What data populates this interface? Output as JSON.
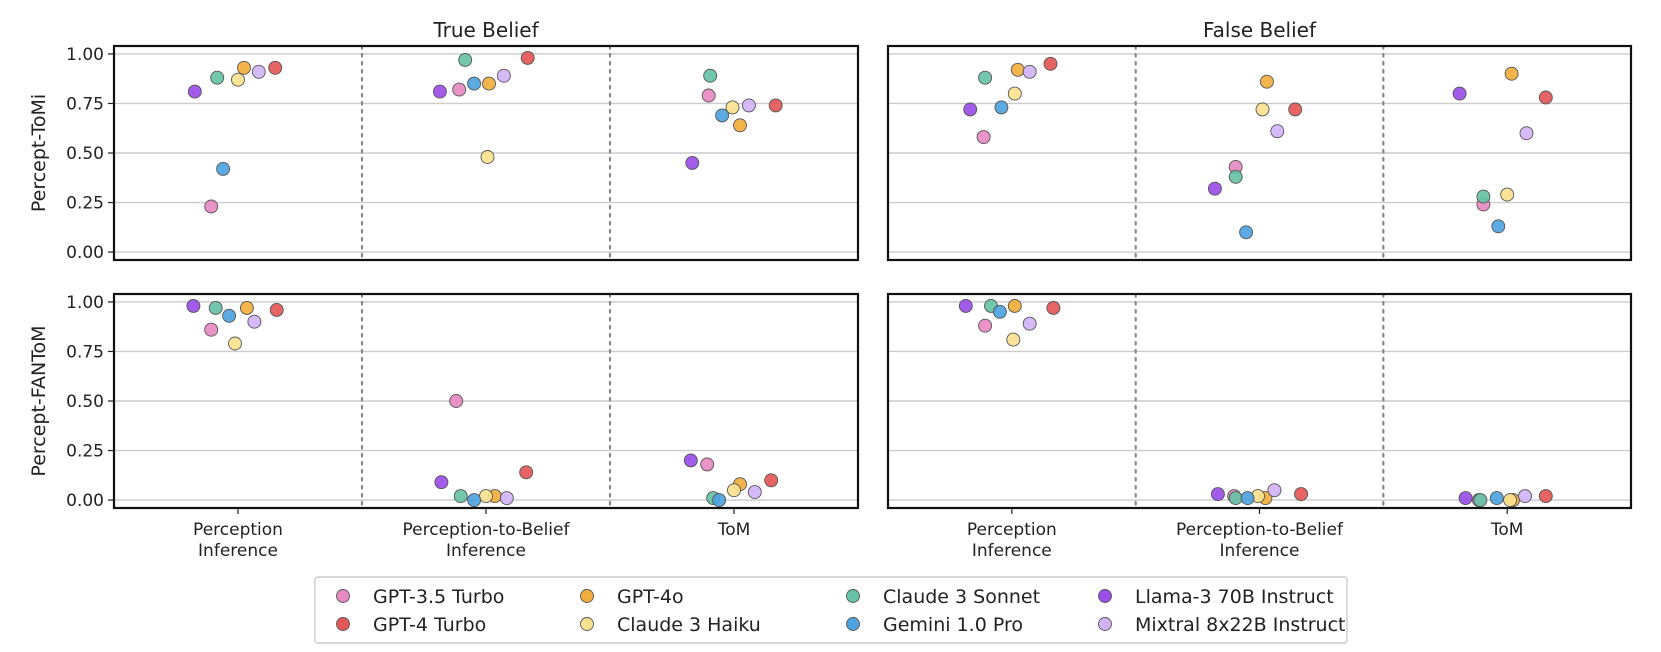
{
  "chart_data": {
    "type": "scatter",
    "columns": [
      "True Belief",
      "False Belief"
    ],
    "rows": [
      "Percept-ToMi",
      "Percept-FANToM"
    ],
    "categories": [
      "Perception\nInference",
      "Perception-to-Belief\nInference",
      "ToM"
    ],
    "yticks": [
      "0.00",
      "0.25",
      "0.50",
      "0.75",
      "1.00"
    ],
    "ylim": [
      -0.04,
      1.04
    ],
    "grid": "horizontal",
    "legend_position": "bottom",
    "models": [
      {
        "name": "GPT-3.5 Turbo",
        "color": "#E78AC3"
      },
      {
        "name": "GPT-4 Turbo",
        "color": "#E45756"
      },
      {
        "name": "GPT-4o",
        "color": "#F2AE3C"
      },
      {
        "name": "Claude 3 Haiku",
        "color": "#FBE28F"
      },
      {
        "name": "Claude 3 Sonnet",
        "color": "#66C2A5"
      },
      {
        "name": "Gemini 1.0 Pro",
        "color": "#4DA3E0"
      },
      {
        "name": "Llama-3 70B Instruct",
        "color": "#9B4DE8"
      },
      {
        "name": "Mixtral 8x22B Instruct",
        "color": "#D3B3F7"
      }
    ],
    "panels": [
      {
        "column": "True Belief",
        "row": "Percept-ToMi",
        "values": [
          [
            0.23,
            0.82,
            0.79
          ],
          [
            0.93,
            0.98,
            0.74
          ],
          [
            0.93,
            0.85,
            0.64
          ],
          [
            0.87,
            0.48,
            0.73
          ],
          [
            0.88,
            0.97,
            0.89
          ],
          [
            0.42,
            0.85,
            0.69
          ],
          [
            0.81,
            0.81,
            0.45
          ],
          [
            0.91,
            0.89,
            0.74
          ]
        ]
      },
      {
        "column": "False Belief",
        "row": "Percept-ToMi",
        "values": [
          [
            0.58,
            0.43,
            0.24
          ],
          [
            0.95,
            0.72,
            0.78
          ],
          [
            0.92,
            0.86,
            0.9
          ],
          [
            0.8,
            0.72,
            0.29
          ],
          [
            0.88,
            0.38,
            0.28
          ],
          [
            0.73,
            0.1,
            0.13
          ],
          [
            0.72,
            0.32,
            0.8
          ],
          [
            0.91,
            0.61,
            0.6
          ]
        ]
      },
      {
        "column": "True Belief",
        "row": "Percept-FANToM",
        "values": [
          [
            0.86,
            0.5,
            0.18
          ],
          [
            0.96,
            0.14,
            0.1
          ],
          [
            0.97,
            0.02,
            0.08
          ],
          [
            0.79,
            0.02,
            0.05
          ],
          [
            0.97,
            0.02,
            0.01
          ],
          [
            0.93,
            0.0,
            0.0
          ],
          [
            0.98,
            0.09,
            0.2
          ],
          [
            0.9,
            0.01,
            0.04
          ]
        ]
      },
      {
        "column": "False Belief",
        "row": "Percept-FANToM",
        "values": [
          [
            0.88,
            0.02,
            0.0
          ],
          [
            0.97,
            0.03,
            0.02
          ],
          [
            0.98,
            0.01,
            0.0
          ],
          [
            0.81,
            0.02,
            0.0
          ],
          [
            0.98,
            0.01,
            0.0
          ],
          [
            0.95,
            0.01,
            0.01
          ],
          [
            0.98,
            0.03,
            0.01
          ],
          [
            0.89,
            0.05,
            0.02
          ]
        ]
      }
    ]
  }
}
